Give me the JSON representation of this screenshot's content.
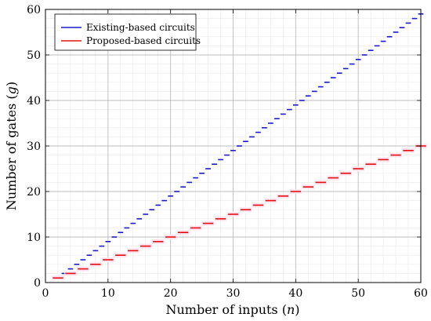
{
  "chart_data": {
    "type": "line",
    "xlabel": "Number of inputs (",
    "xlabel_var": "n",
    "xlabel_end": ")",
    "ylabel": "Number of gates (",
    "ylabel_var": "g",
    "ylabel_end": ")",
    "xlim": [
      0,
      60
    ],
    "ylim": [
      0,
      60
    ],
    "xticks": [
      0,
      10,
      20,
      30,
      40,
      50,
      60
    ],
    "yticks": [
      0,
      10,
      20,
      30,
      40,
      50,
      60
    ],
    "grid": true,
    "legend_position": "top-left",
    "series": [
      {
        "name": "Existing-based circuits",
        "color": "#1a1acc",
        "x": [
          2,
          3,
          4,
          5,
          6,
          7,
          8,
          9,
          10,
          11,
          12,
          13,
          14,
          15,
          16,
          17,
          18,
          19,
          20,
          21,
          22,
          23,
          24,
          25,
          26,
          27,
          28,
          29,
          30,
          31,
          32,
          33,
          34,
          35,
          36,
          37,
          38,
          39,
          40,
          41,
          42,
          43,
          44,
          45,
          46,
          47,
          48,
          49,
          50,
          51,
          52,
          53,
          54,
          55,
          56,
          57,
          58,
          59,
          60
        ],
        "y": [
          1,
          2,
          3,
          4,
          5,
          6,
          7,
          8,
          9,
          10,
          11,
          12,
          13,
          14,
          15,
          16,
          17,
          18,
          19,
          20,
          21,
          22,
          23,
          24,
          25,
          26,
          27,
          28,
          29,
          30,
          31,
          32,
          33,
          34,
          35,
          36,
          37,
          38,
          39,
          40,
          41,
          42,
          43,
          44,
          45,
          46,
          47,
          48,
          49,
          50,
          51,
          52,
          53,
          54,
          55,
          56,
          57,
          58,
          59
        ]
      },
      {
        "name": "Proposed-based circuits",
        "color": "#e01010",
        "x": [
          2,
          4,
          6,
          8,
          10,
          12,
          14,
          16,
          18,
          20,
          22,
          24,
          26,
          28,
          30,
          32,
          34,
          36,
          38,
          40,
          42,
          44,
          46,
          48,
          50,
          52,
          54,
          56,
          58,
          60
        ],
        "y": [
          1,
          2,
          3,
          4,
          5,
          6,
          7,
          8,
          9,
          10,
          11,
          12,
          13,
          14,
          15,
          16,
          17,
          18,
          19,
          20,
          21,
          22,
          23,
          24,
          25,
          26,
          27,
          28,
          29,
          30
        ]
      }
    ]
  }
}
